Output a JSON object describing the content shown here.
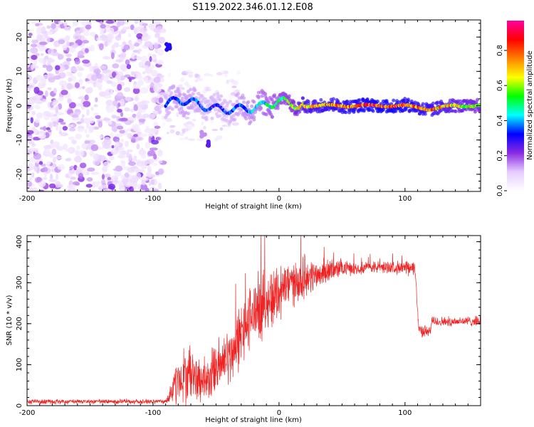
{
  "title": "S119.2022.346.01.12.E08",
  "chart_data": [
    {
      "type": "heatmap",
      "xlabel": "Height of straight line (km)",
      "ylabel": "Frequency (Hz)",
      "xlim": [
        -200,
        160
      ],
      "ylim": [
        -25,
        25
      ],
      "x_ticks": [
        -200,
        -100,
        0,
        100
      ],
      "y_ticks": [
        -20,
        -10,
        0,
        10,
        20
      ],
      "colorbar": {
        "label": "Normalized spectral amplitude",
        "range": [
          0,
          0.97
        ],
        "ticks": [
          "0.0",
          "0.2",
          "0.4",
          "0.6",
          "0.8"
        ],
        "tick_values": [
          0.0,
          0.2,
          0.4,
          0.6,
          0.8
        ],
        "colors": [
          "#ffffff",
          "#e6ccff",
          "#8a2be2",
          "#0000ff",
          "#00ffff",
          "#00ff00",
          "#ffff00",
          "#ff8000",
          "#ff0000",
          "#ff00a0"
        ]
      },
      "features": {
        "noise_region_x": [
          -200,
          -92
        ],
        "signal_track": [
          [
            -90,
            0,
            0.35
          ],
          [
            -80,
            2,
            0.4
          ],
          [
            -70,
            1,
            0.4
          ],
          [
            -60,
            0,
            0.35
          ],
          [
            -50,
            -1,
            0.35
          ],
          [
            -40,
            -1,
            0.35
          ],
          [
            -30,
            -1,
            0.4
          ],
          [
            -20,
            -0.5,
            0.45
          ],
          [
            -10,
            0,
            0.5
          ],
          [
            0,
            1.5,
            0.55
          ],
          [
            10,
            0.5,
            0.6
          ],
          [
            20,
            0,
            0.75
          ],
          [
            40,
            0,
            0.8
          ],
          [
            60,
            0,
            0.85
          ],
          [
            80,
            0,
            0.9
          ],
          [
            100,
            0,
            0.85
          ],
          [
            120,
            -1,
            0.8
          ],
          [
            140,
            0,
            0.7
          ],
          [
            160,
            0,
            0.65
          ]
        ],
        "secondary_blobs": [
          [
            -88,
            17,
            0.3
          ],
          [
            -56,
            -11,
            0.25
          ],
          [
            -60,
            -8,
            0.15
          ]
        ]
      }
    },
    {
      "type": "line",
      "xlabel": "Height of straight line (km)",
      "ylabel": "SNR (10 * v/v)",
      "xlim": [
        -200,
        160
      ],
      "ylim": [
        0,
        415
      ],
      "x_ticks": [
        -200,
        -100,
        0,
        100
      ],
      "y_ticks": [
        0,
        100,
        200,
        300,
        400
      ],
      "color": "#ee2222",
      "series": [
        {
          "x": [
            -200,
            -150,
            -100,
            -90,
            -80,
            -70,
            -60,
            -50,
            -40,
            -30,
            -20,
            -10,
            0,
            10,
            20,
            30,
            40,
            50,
            60,
            70,
            80,
            90,
            100,
            108,
            111,
            115,
            120,
            121,
            130,
            140,
            150,
            160
          ],
          "values": [
            10,
            10,
            10,
            10,
            60,
            80,
            50,
            90,
            120,
            170,
            230,
            250,
            280,
            300,
            310,
            320,
            330,
            335,
            335,
            338,
            338,
            338,
            335,
            335,
            185,
            182,
            180,
            205,
            205,
            206,
            206,
            206
          ],
          "spread": [
            6,
            6,
            6,
            6,
            60,
            70,
            45,
            70,
            70,
            80,
            80,
            80,
            75,
            55,
            50,
            35,
            30,
            20,
            15,
            15,
            15,
            15,
            18,
            18,
            15,
            15,
            12,
            14,
            12,
            12,
            12,
            12
          ]
        }
      ]
    }
  ]
}
